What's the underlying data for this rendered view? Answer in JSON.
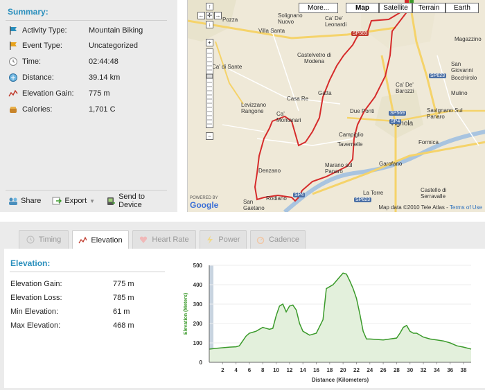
{
  "summary": {
    "title": "Summary:",
    "rows": [
      {
        "label": "Activity Type:",
        "value": "Mountain Biking",
        "icon": "bike-flag-icon"
      },
      {
        "label": "Event Type:",
        "value": "Uncategorized",
        "icon": "flag-icon"
      },
      {
        "label": "Time:",
        "value": "02:44:48",
        "icon": "clock-icon"
      },
      {
        "label": "Distance:",
        "value": "39.14 km",
        "icon": "distance-icon"
      },
      {
        "label": "Elevation Gain:",
        "value": "775 m",
        "icon": "elevation-icon"
      },
      {
        "label": "Calories:",
        "value": "1,701 C",
        "icon": "calories-icon"
      }
    ],
    "actions": {
      "share": "Share",
      "export": "Export",
      "send": "Send to Device"
    }
  },
  "map": {
    "buttons": {
      "more": "More...",
      "map": "Map",
      "satellite": "Satellite",
      "terrain": "Terrain",
      "earth": "Earth"
    },
    "labels": [
      "Pozza",
      "Solignano Nuovo",
      "Ca' De' Leonardi",
      "Villa Santa",
      "Castelvetro di Modena",
      "Ca' di Sante",
      "Casa Re",
      "Gatta",
      "Levizzano Rangone",
      "Ca' Montanari",
      "Due Ponti",
      "Vignola",
      "Ca' De' Barozzi",
      "San Giovanni",
      "Bocchirolo",
      "Savignano Sul Panaro",
      "Campiglio",
      "Tavernelle",
      "Marano sul Panaro",
      "Denzano",
      "Garofano",
      "Formica",
      "Castello di Serravalle",
      "La Torre",
      "Rodiano",
      "San Gaetano",
      "Mulino",
      "Magazzino"
    ],
    "roads": {
      "sp569a": "SP569",
      "sp569b": "SP569",
      "sp623a": "SP623",
      "sp623b": "SP623",
      "sp4a": "SP4",
      "sp4b": "SP4"
    },
    "copyright": "Map data ©2010 Tele Atlas - ",
    "terms": "Terms of Use",
    "powered": "POWERED BY",
    "google": "Google"
  },
  "tabs": {
    "timing": "Timing",
    "elevation": "Elevation",
    "heart_rate": "Heart Rate",
    "power": "Power",
    "cadence": "Cadence"
  },
  "elevation": {
    "title": "Elevation:",
    "rows": [
      {
        "label": "Elevation Gain:",
        "value": "775 m"
      },
      {
        "label": "Elevation Loss:",
        "value": "785 m"
      },
      {
        "label": "Min Elevation:",
        "value": "61 m"
      },
      {
        "label": "Max Elevation:",
        "value": "468 m"
      }
    ]
  },
  "chart_data": {
    "type": "area",
    "xlabel": "Distance (Kilometers)",
    "ylabel": "Elevation (Meters)",
    "xlim": [
      0,
      39.14
    ],
    "ylim": [
      0,
      500
    ],
    "xticks": [
      2,
      4,
      6,
      8,
      10,
      12,
      14,
      16,
      18,
      20,
      22,
      24,
      26,
      28,
      30,
      32,
      34,
      36,
      38
    ],
    "yticks": [
      0,
      100,
      200,
      300,
      400,
      500
    ],
    "line_color": "#3a9a2a",
    "fill_color": "#e3f0dc",
    "x": [
      0,
      1,
      2,
      3,
      4,
      4.5,
      5,
      5.5,
      6,
      6.5,
      7,
      8,
      9,
      9.5,
      10,
      10.5,
      11,
      11.5,
      12,
      12.5,
      13,
      13.5,
      14,
      15,
      16,
      17,
      17.5,
      18,
      18.5,
      19,
      19.5,
      20,
      20.5,
      21,
      21.5,
      22,
      22.5,
      23,
      23.5,
      24,
      25,
      26,
      27,
      28,
      28.5,
      29,
      29.5,
      30,
      30.5,
      31,
      32,
      33,
      34,
      35,
      36,
      37,
      38,
      39.14
    ],
    "y": [
      68,
      72,
      75,
      78,
      80,
      85,
      110,
      135,
      150,
      155,
      160,
      180,
      170,
      175,
      240,
      290,
      300,
      260,
      290,
      295,
      270,
      200,
      160,
      140,
      150,
      220,
      380,
      390,
      400,
      420,
      440,
      460,
      455,
      420,
      380,
      330,
      250,
      160,
      120,
      120,
      118,
      115,
      120,
      125,
      150,
      180,
      190,
      160,
      150,
      150,
      130,
      120,
      115,
      110,
      100,
      85,
      78,
      68
    ]
  }
}
